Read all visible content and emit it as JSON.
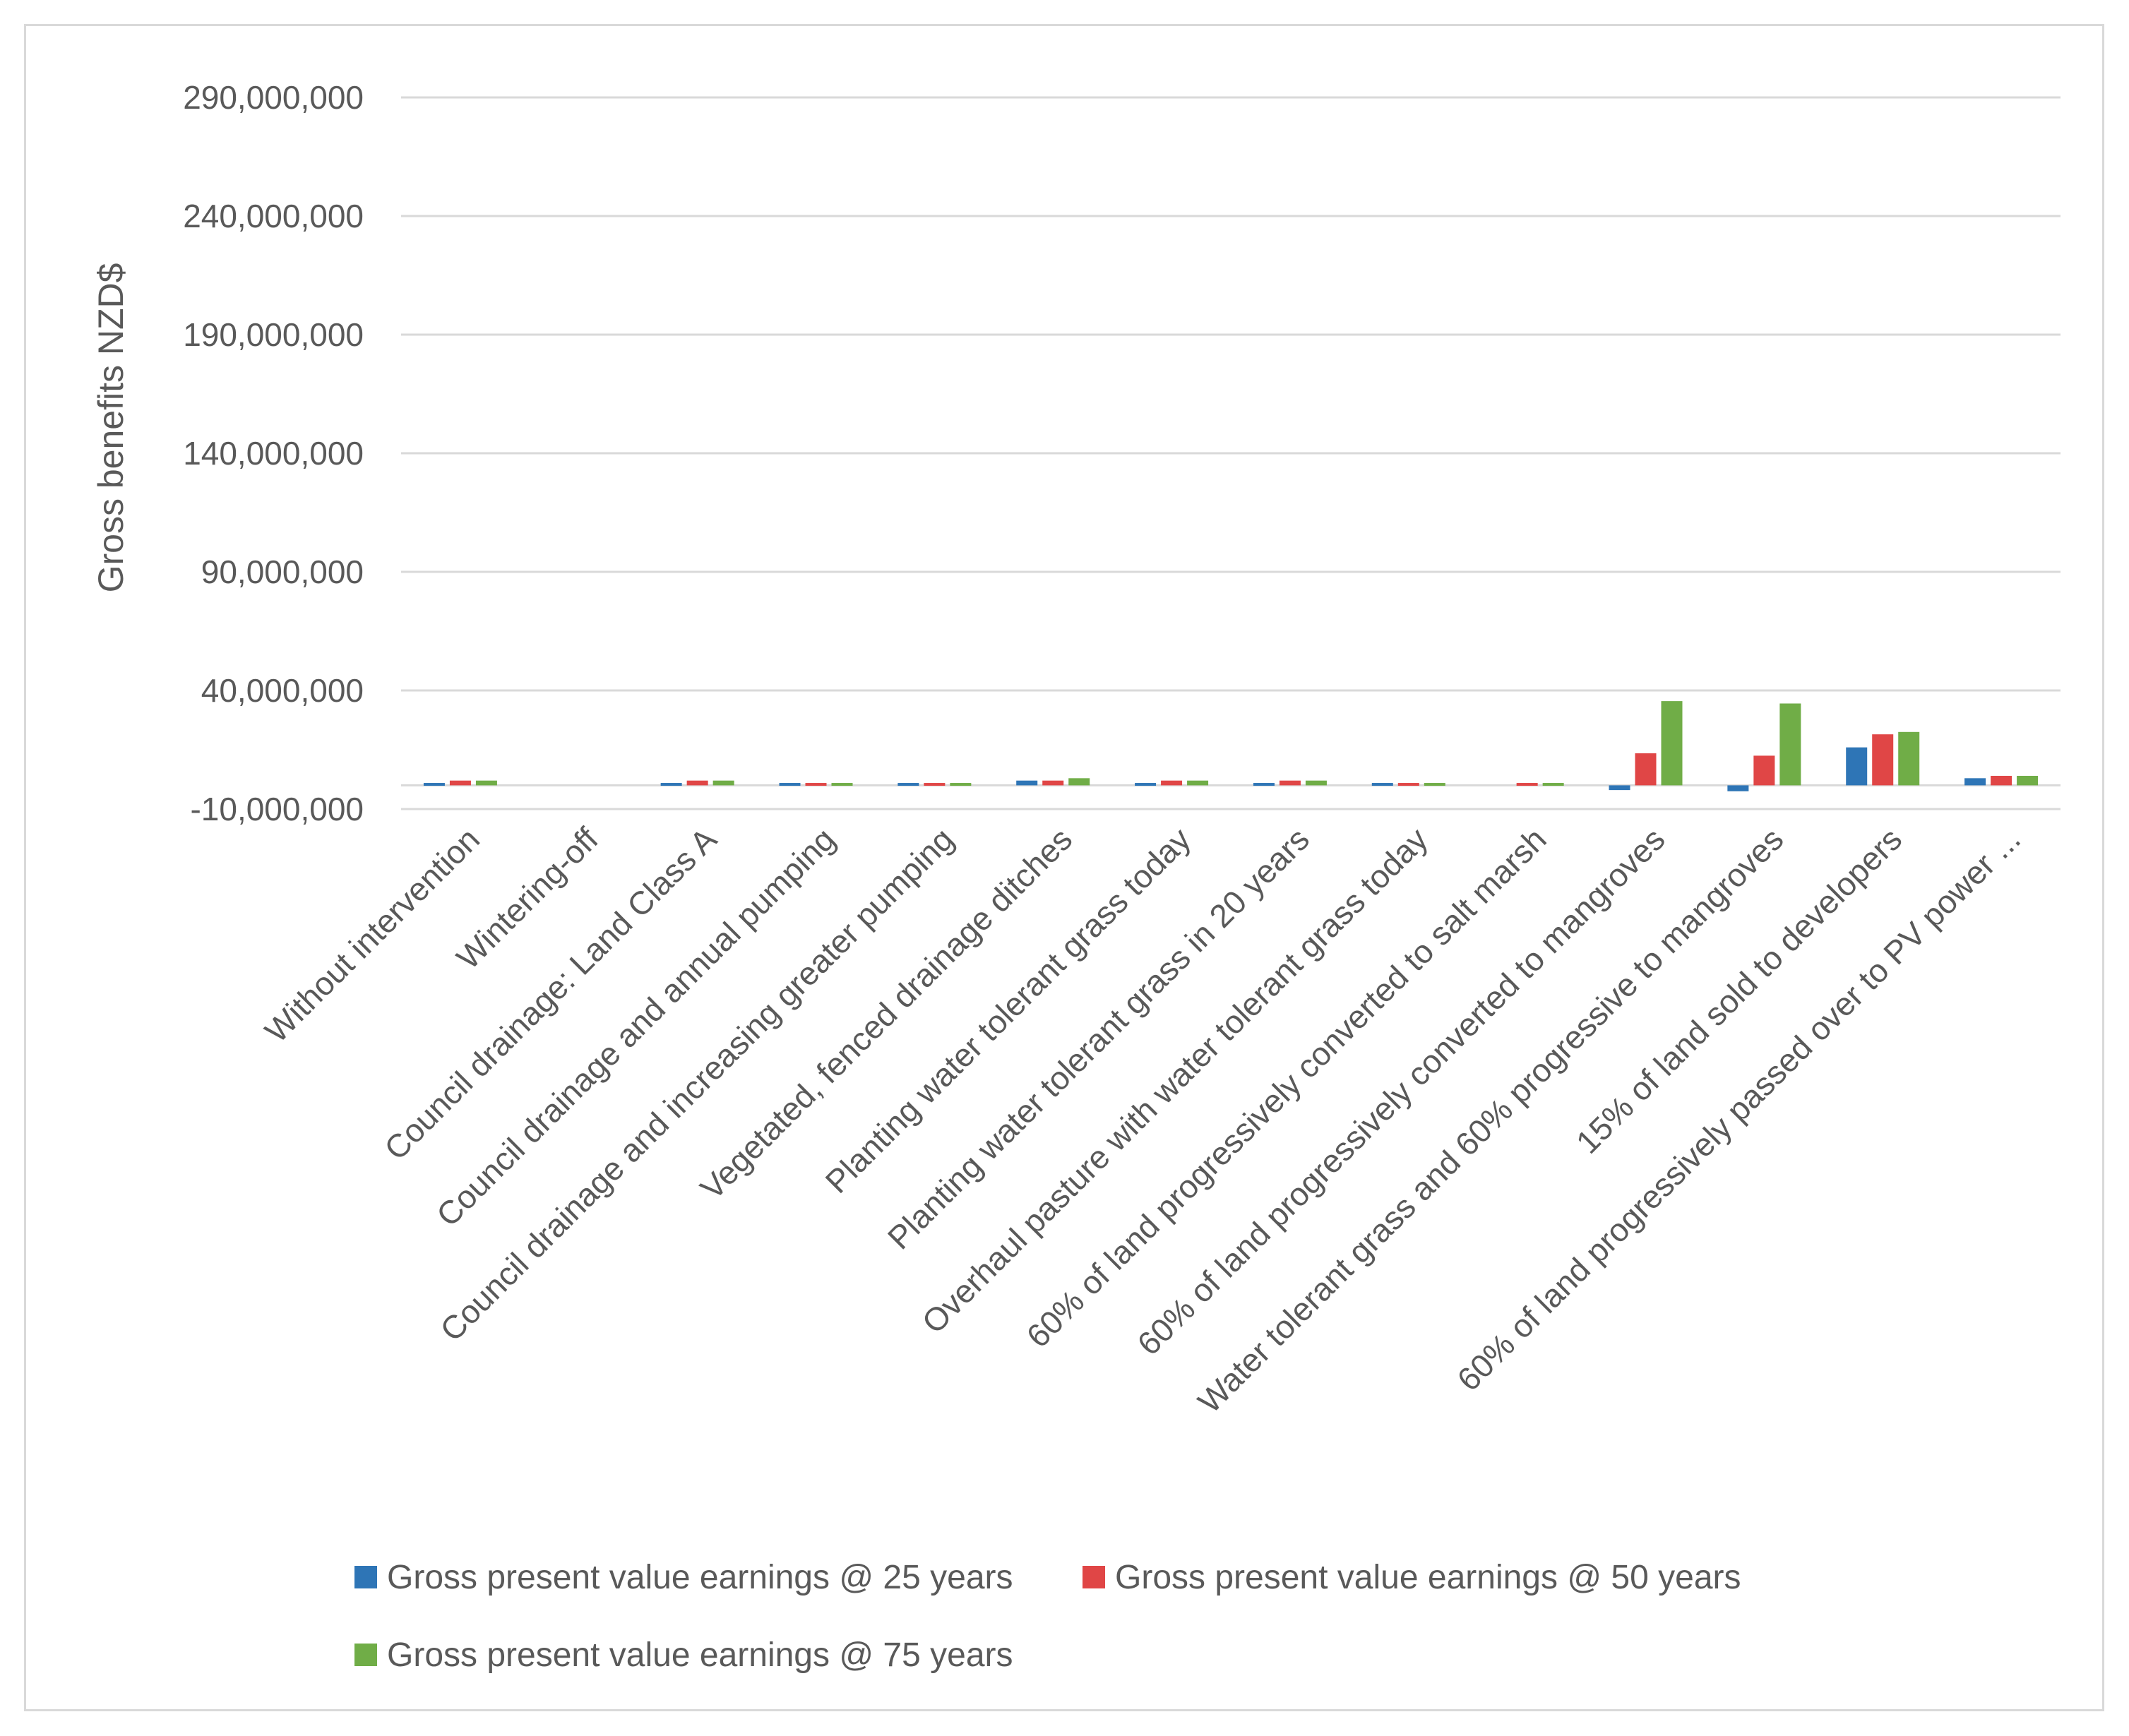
{
  "chart_data": {
    "type": "bar",
    "title": "",
    "xlabel": "",
    "ylabel": "Gross benefits NZD$",
    "ylim": [
      -10000000,
      290000000
    ],
    "yticks": [
      -10000000,
      40000000,
      90000000,
      140000000,
      190000000,
      240000000,
      290000000
    ],
    "ytick_labels": [
      "-10,000,000",
      "40,000,000",
      "90,000,000",
      "140,000,000",
      "190,000,000",
      "240,000,000",
      "290,000,000"
    ],
    "grid": true,
    "legend_position": "bottom",
    "categories": [
      "Without intervention",
      "Wintering-off",
      "Council drainage: Land Class A",
      "Council drainage and annual pumping",
      "Council drainage and increasing greater pumping",
      "Vegetated, fenced  drainage ditches",
      "Planting water tolerant grass today",
      "Planting water tolerant grass in 20 years",
      "Overhaul pasture with water tolerant grass today",
      "60% of land progressively converted to salt marsh",
      "60% of land progressively converted to mangroves",
      "Water tolerant grass and 60% progressive to mangroves",
      "15% of land sold to developers",
      "60% of land progressively passed over to PV power ..."
    ],
    "series": [
      {
        "name": "Gross present value earnings @ 25 years",
        "color": "#2e75b6",
        "values": [
          1000000,
          0,
          1000000,
          1000000,
          1000000,
          2000000,
          1000000,
          1000000,
          1000000,
          0,
          -2000000,
          -2500000,
          16000000,
          3000000
        ]
      },
      {
        "name": "Gross present value earnings @ 50 years",
        "color": "#e04646",
        "values": [
          2000000,
          0,
          2000000,
          1000000,
          1000000,
          2000000,
          2000000,
          2000000,
          1000000,
          1000000,
          13500000,
          12500000,
          21500000,
          4000000
        ]
      },
      {
        "name": "Gross present value earnings @ 75 years",
        "color": "#70ad47",
        "values": [
          2000000,
          0,
          2000000,
          1000000,
          1000000,
          3000000,
          2000000,
          2000000,
          1000000,
          1000000,
          35500000,
          34500000,
          22500000,
          4000000
        ]
      }
    ]
  }
}
